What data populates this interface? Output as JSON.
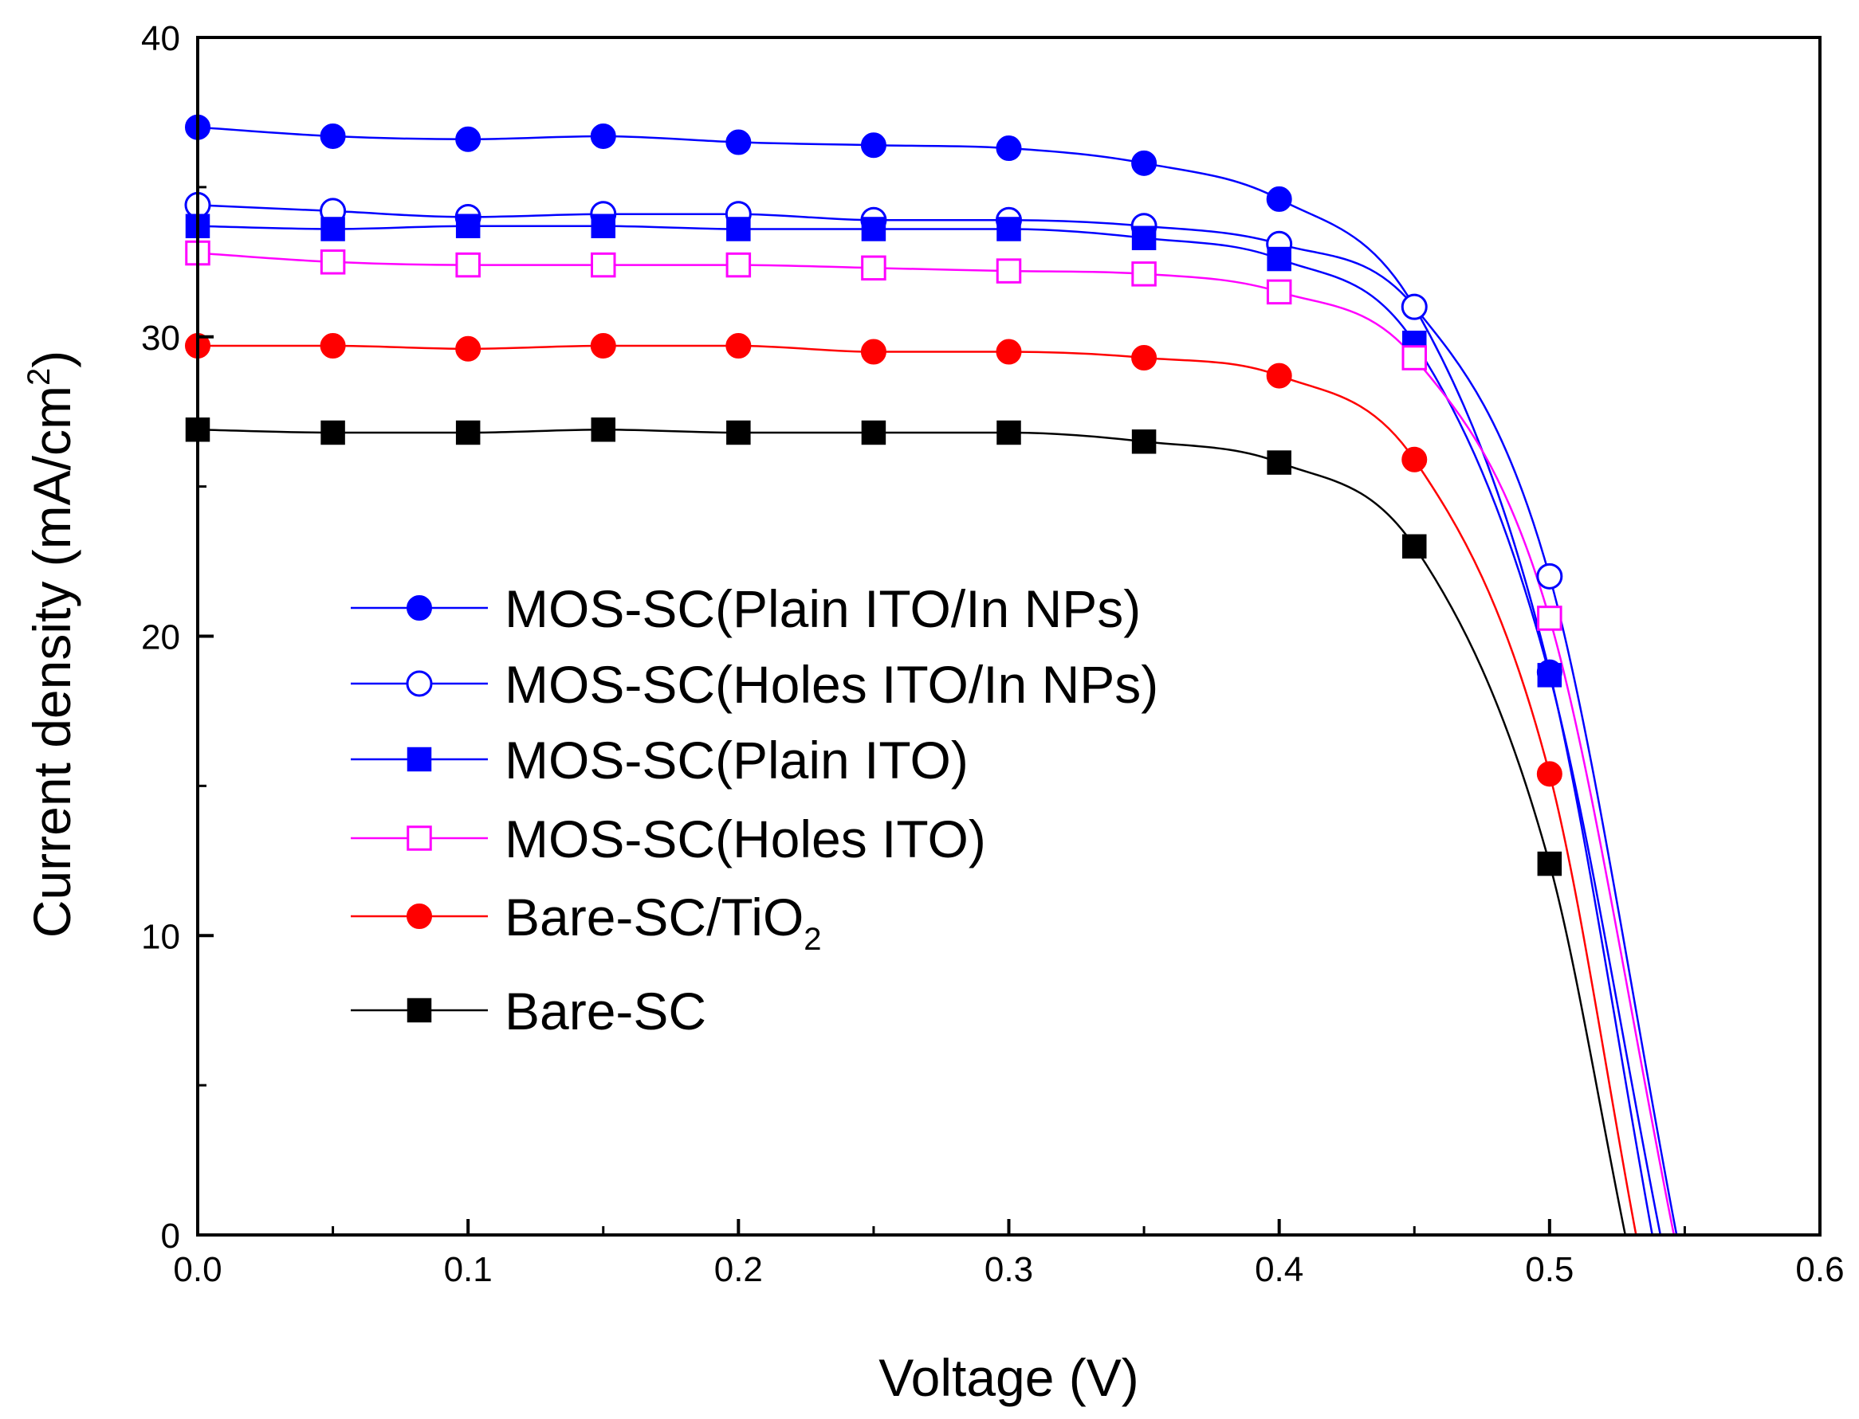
{
  "chart_data": {
    "type": "line",
    "title": "",
    "xlabel": "Voltage (V)",
    "ylabel": "Current density (mA/cm",
    "ylabel_sup": "2",
    "ylabel_close": ")",
    "xlim": [
      0.0,
      0.6
    ],
    "ylim": [
      0,
      40
    ],
    "xticks": [
      0.0,
      0.1,
      0.2,
      0.3,
      0.4,
      0.5,
      0.6
    ],
    "xtick_labels": [
      "0.0",
      "0.1",
      "0.2",
      "0.3",
      "0.4",
      "0.5",
      "0.6"
    ],
    "yticks": [
      0,
      10,
      20,
      30,
      40
    ],
    "ytick_labels": [
      "0",
      "10",
      "20",
      "30",
      "40"
    ],
    "grid": false,
    "legend_position": "center-left",
    "series": [
      {
        "name": "MOS-SC(Plain ITO/In NPs)",
        "color": "#0000ff",
        "marker": "circle",
        "filled": true,
        "x": [
          0.0,
          0.05,
          0.1,
          0.15,
          0.2,
          0.25,
          0.3,
          0.35,
          0.4,
          0.45,
          0.5
        ],
        "y": [
          37.0,
          36.7,
          36.6,
          36.7,
          36.5,
          36.4,
          36.3,
          35.8,
          34.6,
          31.0,
          18.8
        ],
        "x_intercept": 0.538
      },
      {
        "name": "MOS-SC(Holes ITO/In NPs)",
        "name_parts": [
          "MOS-SC(Holes ITO/In NPs)"
        ],
        "color": "#0000ff",
        "marker": "circle",
        "filled": false,
        "x": [
          0.0,
          0.05,
          0.1,
          0.15,
          0.2,
          0.25,
          0.3,
          0.35,
          0.4,
          0.45,
          0.5
        ],
        "y": [
          34.4,
          34.2,
          34.0,
          34.1,
          34.1,
          33.9,
          33.9,
          33.7,
          33.1,
          31.0,
          22.0
        ],
        "x_intercept": 0.547
      },
      {
        "name": "MOS-SC(Plain ITO)",
        "color": "#0000ff",
        "marker": "square",
        "filled": true,
        "x": [
          0.0,
          0.05,
          0.1,
          0.15,
          0.2,
          0.25,
          0.3,
          0.35,
          0.4,
          0.45,
          0.5
        ],
        "y": [
          33.7,
          33.6,
          33.7,
          33.7,
          33.6,
          33.6,
          33.6,
          33.3,
          32.6,
          29.8,
          18.7
        ],
        "x_intercept": 0.541
      },
      {
        "name": "MOS-SC(Holes ITO)",
        "color": "#ff00ff",
        "marker": "square",
        "filled": false,
        "x": [
          0.0,
          0.05,
          0.1,
          0.15,
          0.2,
          0.25,
          0.3,
          0.35,
          0.4,
          0.45,
          0.5
        ],
        "y": [
          32.8,
          32.5,
          32.4,
          32.4,
          32.4,
          32.3,
          32.2,
          32.1,
          31.5,
          29.3,
          20.6
        ],
        "x_intercept": 0.546
      },
      {
        "name": "Bare-SC/TiO",
        "name_sub": "2",
        "color": "#ff0000",
        "marker": "circle",
        "filled": true,
        "x": [
          0.0,
          0.05,
          0.1,
          0.15,
          0.2,
          0.25,
          0.3,
          0.35,
          0.4,
          0.45,
          0.5
        ],
        "y": [
          29.7,
          29.7,
          29.6,
          29.7,
          29.7,
          29.5,
          29.5,
          29.3,
          28.7,
          25.9,
          15.4
        ],
        "x_intercept": 0.532
      },
      {
        "name": "Bare-SC",
        "color": "#000000",
        "marker": "square",
        "filled": true,
        "x": [
          0.0,
          0.05,
          0.1,
          0.15,
          0.2,
          0.25,
          0.3,
          0.35,
          0.4,
          0.45,
          0.5
        ],
        "y": [
          26.9,
          26.8,
          26.8,
          26.9,
          26.8,
          26.8,
          26.8,
          26.5,
          25.8,
          23.0,
          12.4
        ],
        "x_intercept": 0.528
      }
    ]
  }
}
